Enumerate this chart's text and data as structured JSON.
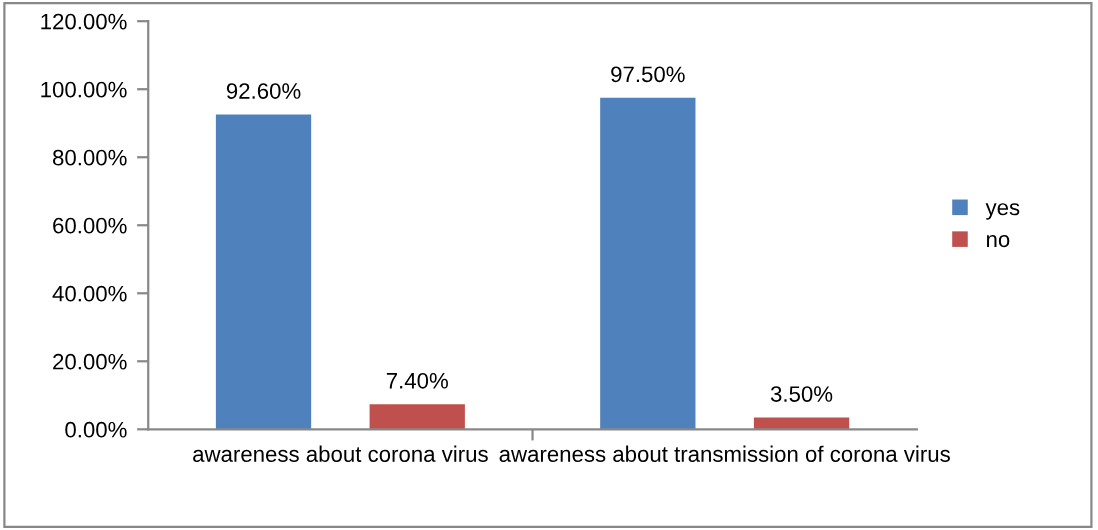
{
  "chart_data": {
    "type": "bar",
    "categories": [
      "awareness about corona virus",
      "awareness about transmission of corona virus"
    ],
    "series": [
      {
        "name": "yes",
        "color": "#4f81bd",
        "values": [
          92.6,
          97.5
        ],
        "value_labels": [
          "92.60%",
          "97.50%"
        ]
      },
      {
        "name": "no",
        "color": "#c0504d",
        "values": [
          7.4,
          3.5
        ],
        "value_labels": [
          "7.40%",
          "3.50%"
        ]
      }
    ],
    "ylim": [
      0,
      120
    ],
    "yticks": [
      {
        "value": 0,
        "label": "0.00%"
      },
      {
        "value": 20,
        "label": "20.00%"
      },
      {
        "value": 40,
        "label": "40.00%"
      },
      {
        "value": 60,
        "label": "60.00%"
      },
      {
        "value": 80,
        "label": "80.00%"
      },
      {
        "value": 100,
        "label": "100.00%"
      },
      {
        "value": 120,
        "label": "120.00%"
      }
    ],
    "grid": false,
    "legend": "right"
  }
}
